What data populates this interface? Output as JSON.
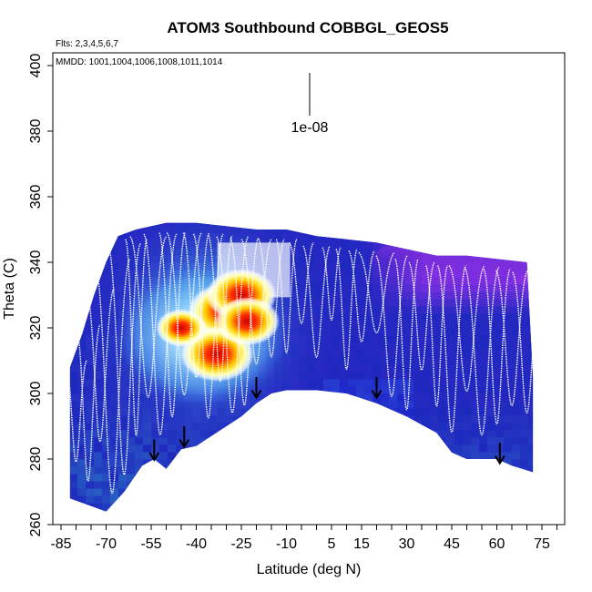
{
  "chart_data": {
    "type": "heatmap",
    "title": "ATOM3 Southbound COBBGL_GEOS5",
    "flights_note": "Flts: 2,3,4,5,6,7",
    "dates_note": "MMDD: 1001,1004,1006,1008,1011,1014",
    "xlabel": "Latitude (deg N)",
    "ylabel": "Theta (C)",
    "xlim": [
      -85,
      85
    ],
    "ylim": [
      260,
      400
    ],
    "x_ticks": [
      -85,
      -70,
      -55,
      -40,
      -25,
      -10,
      5,
      15,
      30,
      45,
      60,
      75
    ],
    "x_tick_labels": [
      "-85",
      "-70",
      "-55",
      "-40",
      "-25",
      "-10",
      "5",
      "15",
      "30",
      "45",
      "60",
      "75"
    ],
    "y_ticks": [
      260,
      280,
      300,
      320,
      340,
      360,
      380,
      400
    ],
    "y_tick_labels": [
      "260",
      "280",
      "300",
      "320",
      "340",
      "360",
      "380",
      "400"
    ],
    "scale_label": "1e-08",
    "surface_theta": [
      [
        -82,
        268
      ],
      [
        -76,
        266
      ],
      [
        -70,
        264
      ],
      [
        -64,
        270
      ],
      [
        -58,
        278
      ],
      [
        -54,
        280
      ],
      [
        -50,
        277
      ],
      [
        -45,
        283
      ],
      [
        -40,
        284
      ],
      [
        -35,
        287
      ],
      [
        -30,
        290
      ],
      [
        -25,
        293
      ],
      [
        -20,
        297
      ],
      [
        -15,
        300
      ],
      [
        -10,
        301
      ],
      [
        0,
        301
      ],
      [
        10,
        300
      ],
      [
        20,
        297
      ],
      [
        30,
        293
      ],
      [
        40,
        288
      ],
      [
        45,
        282
      ],
      [
        50,
        280
      ],
      [
        60,
        280
      ],
      [
        65,
        278
      ],
      [
        72,
        276
      ]
    ],
    "top_theta": [
      [
        -82,
        308
      ],
      [
        -78,
        318
      ],
      [
        -74,
        330
      ],
      [
        -70,
        340
      ],
      [
        -66,
        348
      ],
      [
        -60,
        350
      ],
      [
        -50,
        352
      ],
      [
        -40,
        352
      ],
      [
        -30,
        351
      ],
      [
        -20,
        350
      ],
      [
        -10,
        350
      ],
      [
        0,
        348
      ],
      [
        10,
        347
      ],
      [
        20,
        346
      ],
      [
        30,
        344
      ],
      [
        40,
        342
      ],
      [
        50,
        342
      ],
      [
        60,
        341
      ],
      [
        70,
        340
      ],
      [
        72,
        305
      ]
    ],
    "hotspots": [
      {
        "lat": -30,
        "theta": 325,
        "value": 1.0
      },
      {
        "lat": -25,
        "theta": 330,
        "value": 0.9
      },
      {
        "lat": -33,
        "theta": 312,
        "value": 0.95
      },
      {
        "lat": -23,
        "theta": 322,
        "value": 0.8
      },
      {
        "lat": -45,
        "theta": 320,
        "value": 0.55
      }
    ],
    "profile_lats": [
      -80,
      -76,
      -72,
      -68,
      -64,
      -60,
      -56,
      -52,
      -48,
      -44,
      -40,
      -36,
      -32,
      -28,
      -24,
      -20,
      -15,
      -10,
      -5,
      0,
      5,
      10,
      15,
      20,
      25,
      30,
      35,
      40,
      45,
      50,
      55,
      60,
      65,
      70
    ],
    "arrows": [
      {
        "lat": -54,
        "theta": 286
      },
      {
        "lat": -44,
        "theta": 290
      },
      {
        "lat": -20,
        "theta": 305
      },
      {
        "lat": 20,
        "theta": 305
      },
      {
        "lat": 61,
        "theta": 285
      }
    ]
  }
}
